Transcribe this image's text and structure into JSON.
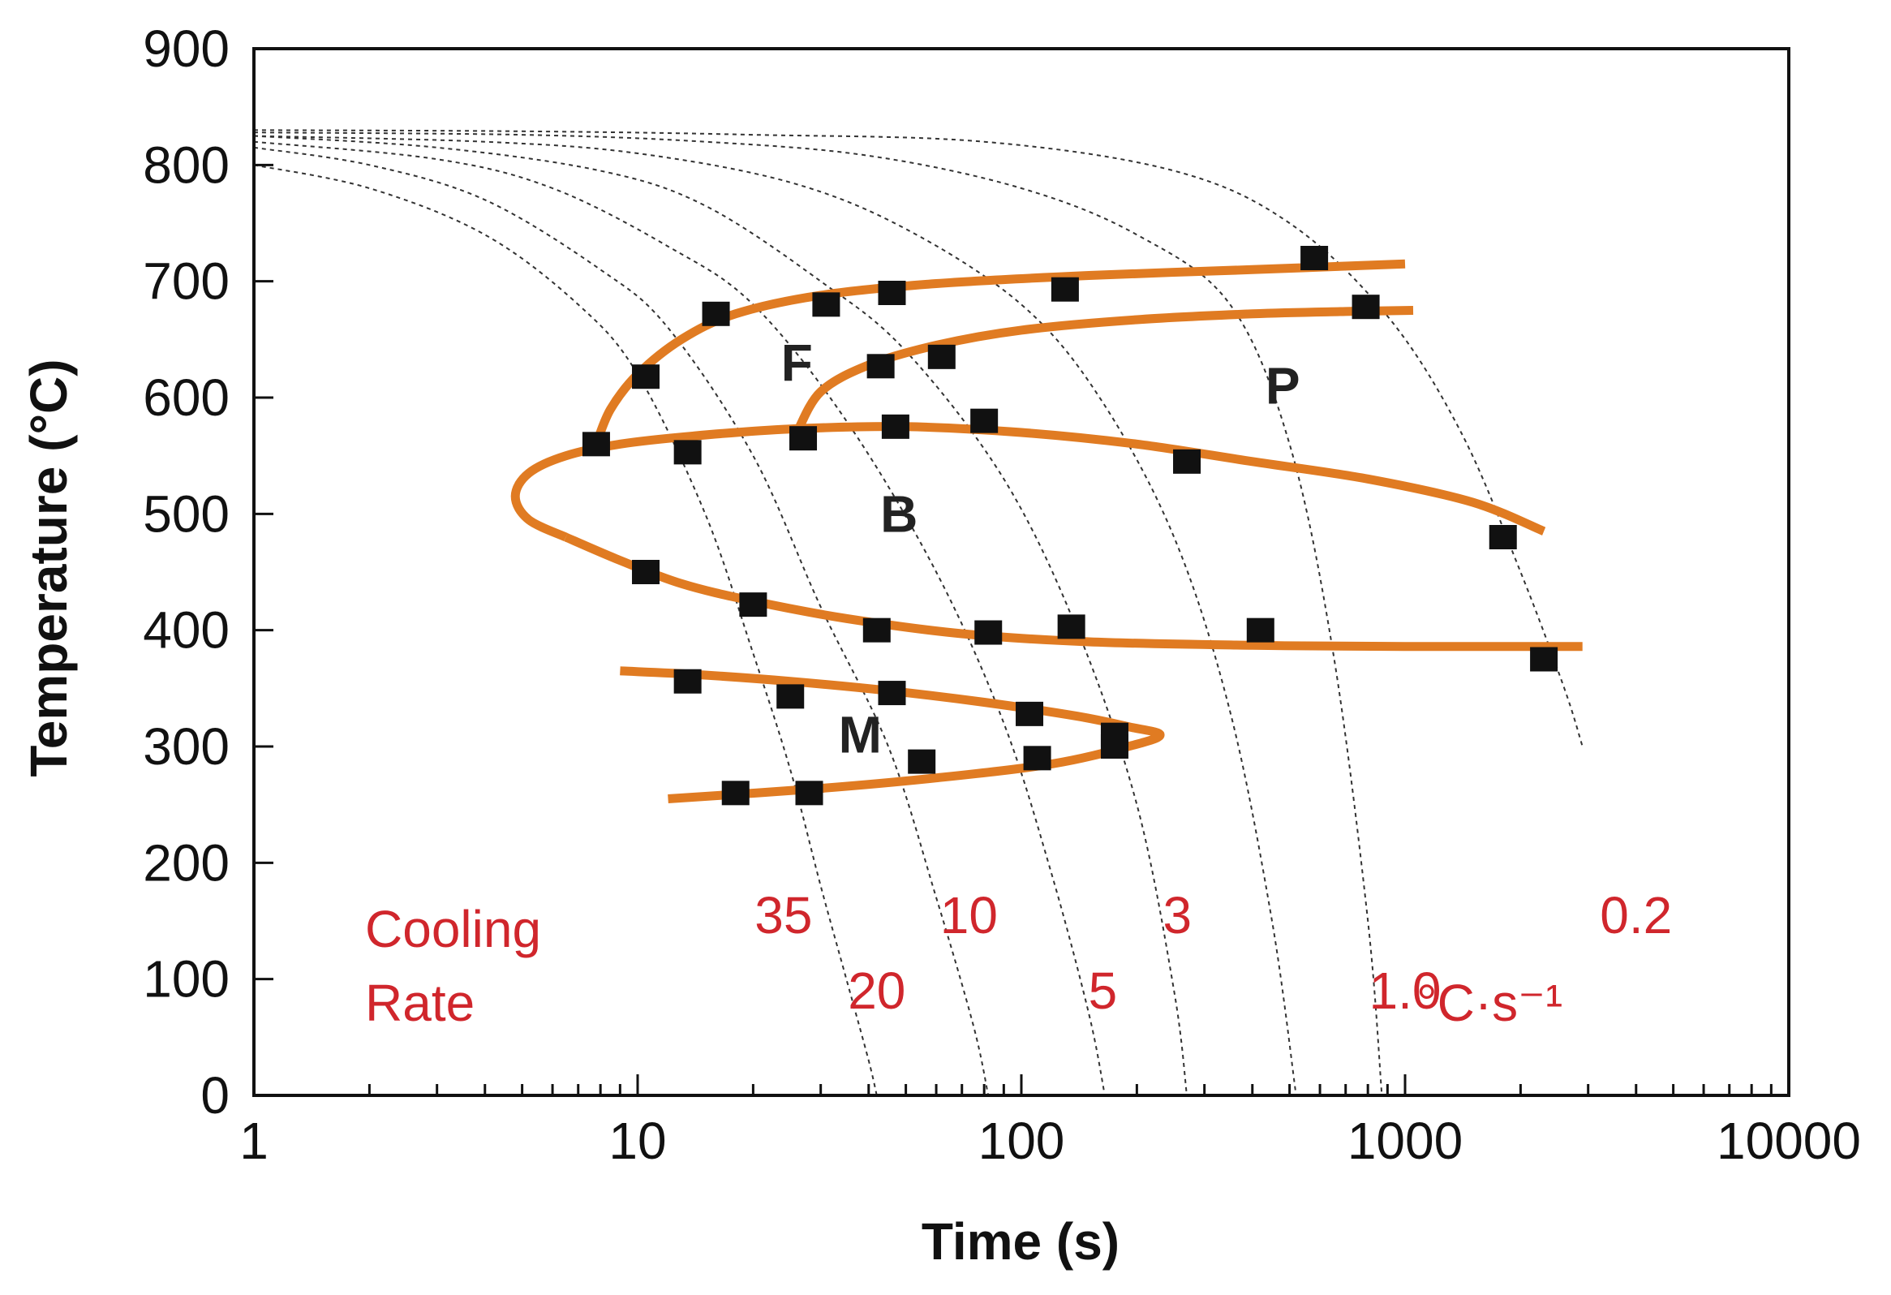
{
  "chart_data": {
    "type": "line",
    "title": "",
    "xlabel": "Time (s)",
    "ylabel": "Temperature (°C)",
    "xscale": "log",
    "xlim": [
      1,
      10000
    ],
    "ylim": [
      0,
      900
    ],
    "x_tick_labels": [
      "1",
      "10",
      "100",
      "1000",
      "10000"
    ],
    "y_tick_labels": [
      "0",
      "100",
      "200",
      "300",
      "400",
      "500",
      "600",
      "700",
      "800",
      "900"
    ],
    "x_tick_values": [
      1,
      10,
      100,
      1000,
      10000
    ],
    "y_tick_values": [
      0,
      100,
      200,
      300,
      400,
      500,
      600,
      700,
      800,
      900
    ],
    "grid": false,
    "colors": {
      "transformation": "#e07b22",
      "cooling": "#333333",
      "points": "#111111",
      "rate_text": "#d0262c",
      "axis": "#111111"
    },
    "regions": [
      {
        "label": "F",
        "x": 26,
        "y": 630
      },
      {
        "label": "P",
        "x": 480,
        "y": 610
      },
      {
        "label": "B",
        "x": 48,
        "y": 500
      },
      {
        "label": "M",
        "x": 38,
        "y": 310
      }
    ],
    "cooling_rate_labels": {
      "header_line1": "Cooling",
      "header_line2": "Rate",
      "unit": "°C·s⁻¹",
      "rates": [
        {
          "label": "35",
          "x": 24,
          "y": 155
        },
        {
          "label": "20",
          "x": 42,
          "y": 90
        },
        {
          "label": "10",
          "x": 73,
          "y": 155
        },
        {
          "label": "5",
          "x": 163,
          "y": 90
        },
        {
          "label": "3",
          "x": 255,
          "y": 155
        },
        {
          "label": "1.0",
          "x": 1000,
          "y": 90
        },
        {
          "label": "0.2",
          "x": 4000,
          "y": 155
        }
      ]
    },
    "cooling_curves": [
      {
        "name": "35 °C/s",
        "x": [
          1,
          2,
          4,
          7,
          10,
          15,
          20,
          25,
          30,
          35,
          40,
          42
        ],
        "y": [
          800,
          780,
          740,
          680,
          620,
          500,
          380,
          280,
          180,
          100,
          30,
          0
        ]
      },
      {
        "name": "20 °C/s",
        "x": [
          1,
          2,
          4,
          8,
          12,
          20,
          30,
          45,
          60,
          75,
          82
        ],
        "y": [
          815,
          800,
          770,
          710,
          660,
          550,
          420,
          300,
          170,
          60,
          0
        ]
      },
      {
        "name": "10 °C/s",
        "x": [
          1,
          3,
          6,
          12,
          20,
          35,
          60,
          90,
          120,
          150,
          165
        ],
        "y": [
          820,
          805,
          780,
          730,
          680,
          580,
          450,
          320,
          190,
          70,
          0
        ]
      },
      {
        "name": "5 °C/s",
        "x": [
          1,
          3,
          8,
          15,
          30,
          50,
          90,
          140,
          200,
          250,
          270
        ],
        "y": [
          825,
          815,
          795,
          765,
          700,
          640,
          530,
          400,
          250,
          90,
          0
        ]
      },
      {
        "name": "3 °C/s",
        "x": [
          1,
          4,
          10,
          25,
          50,
          100,
          160,
          250,
          350,
          450,
          520
        ],
        "y": [
          825,
          820,
          810,
          785,
          745,
          680,
          600,
          480,
          330,
          150,
          0
        ]
      },
      {
        "name": "1.0 °C/s",
        "x": [
          1,
          5,
          15,
          40,
          100,
          200,
          350,
          500,
          650,
          800,
          870
        ],
        "y": [
          828,
          826,
          820,
          808,
          780,
          740,
          680,
          560,
          380,
          150,
          0
        ]
      },
      {
        "name": "0.2 °C/s",
        "x": [
          1,
          5,
          20,
          80,
          250,
          500,
          900,
          1400,
          2000,
          2600,
          2900
        ],
        "y": [
          830,
          829,
          826,
          820,
          795,
          750,
          670,
          570,
          450,
          350,
          300
        ]
      }
    ],
    "series": [
      {
        "name": "F start",
        "x": [
          7.8,
          8.5,
          10,
          13,
          18,
          30,
          60,
          150,
          400,
          1000
        ],
        "y": [
          560,
          590,
          620,
          650,
          672,
          688,
          698,
          705,
          710,
          715
        ]
      },
      {
        "name": "P start",
        "x": [
          26,
          30,
          40,
          60,
          100,
          200,
          400,
          700,
          1050
        ],
        "y": [
          570,
          605,
          628,
          645,
          658,
          667,
          672,
          674,
          675
        ]
      },
      {
        "name": "B start",
        "x": [
          2300,
          1500,
          800,
          400,
          200,
          100,
          50,
          25,
          14,
          9,
          6.5,
          5.2,
          4.8,
          5.2,
          6.5
        ],
        "y": [
          485,
          510,
          530,
          545,
          560,
          570,
          575,
          573,
          567,
          560,
          550,
          535,
          515,
          495,
          480
        ]
      },
      {
        "name": "B finish",
        "x": [
          6.5,
          9,
          13,
          20,
          35,
          70,
          150,
          400,
          1000,
          2000,
          2900
        ],
        "y": [
          480,
          460,
          440,
          425,
          410,
          397,
          390,
          387,
          386,
          386,
          386
        ]
      },
      {
        "name": "M start",
        "x": [
          9,
          14,
          25,
          45,
          80,
          140,
          190,
          230,
          190,
          120,
          60,
          30,
          12
        ],
        "y": [
          365,
          362,
          356,
          348,
          338,
          326,
          317,
          310,
          300,
          285,
          273,
          264,
          255
        ]
      }
    ],
    "points": {
      "x": [
        7.8,
        10.5,
        16,
        31,
        46,
        130,
        580,
        790,
        13.5,
        27,
        47,
        80,
        270,
        1800,
        43,
        62,
        10.5,
        20,
        42,
        82,
        135,
        420,
        2300,
        13.5,
        25,
        46,
        105,
        175,
        18,
        28,
        55,
        110,
        175
      ],
      "y": [
        560,
        618,
        672,
        680,
        690,
        693,
        720,
        678,
        553,
        565,
        575,
        580,
        545,
        480,
        627,
        635,
        450,
        422,
        400,
        398,
        403,
        400,
        375,
        356,
        343,
        346,
        328,
        310,
        260,
        260,
        287,
        290,
        300
      ]
    }
  }
}
